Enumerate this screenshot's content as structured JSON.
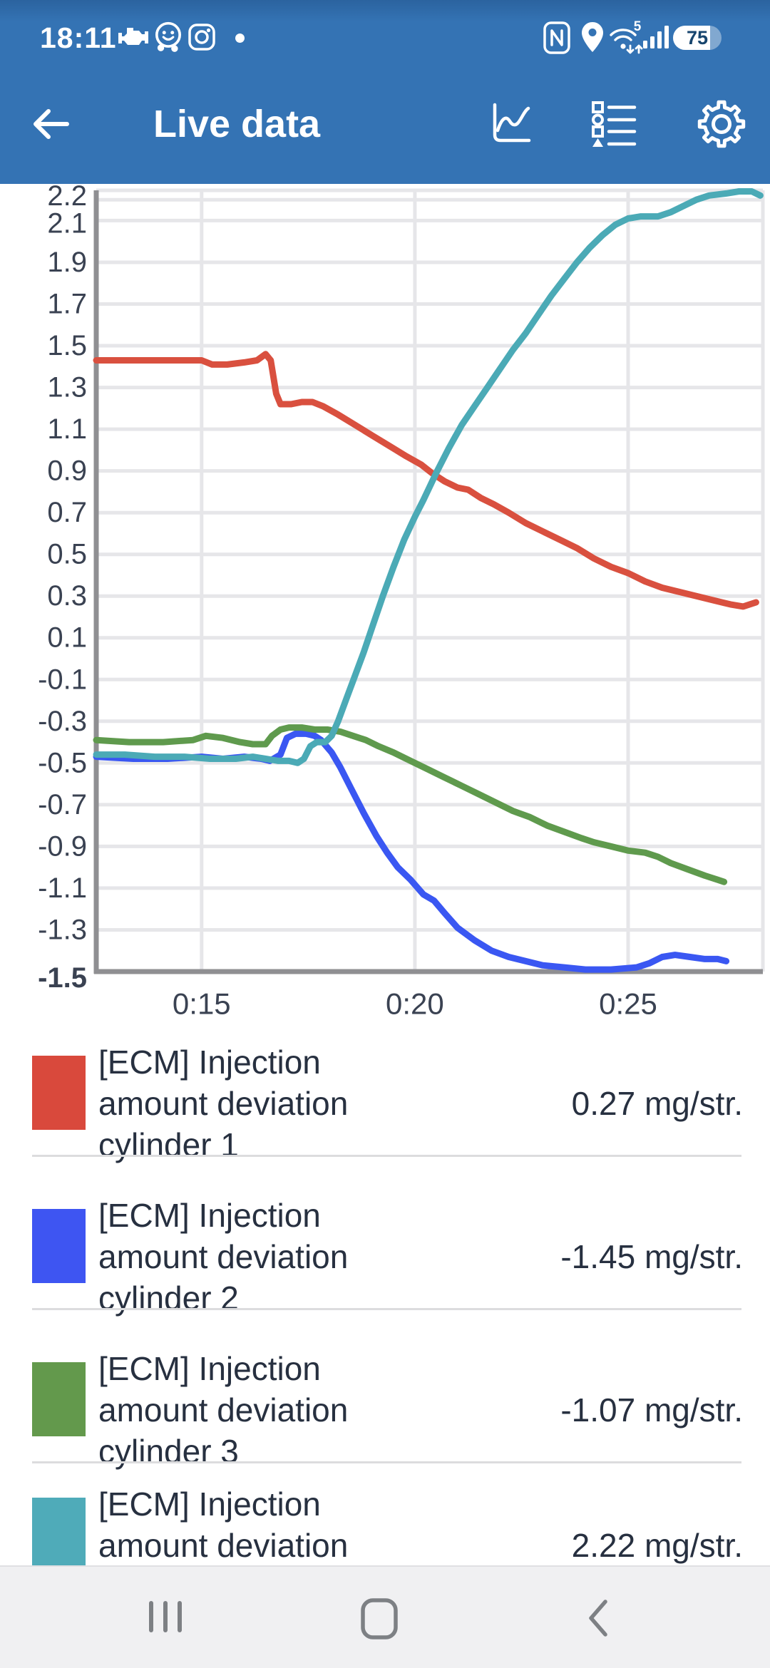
{
  "statusbar": {
    "time": "18:11",
    "battery": "75",
    "wifi_generation": "5",
    "icons": [
      "engine-icon",
      "waze-icon",
      "instagram-icon",
      "notification-dot",
      "nfc-icon",
      "location-icon",
      "wifi-icon",
      "signal-icon",
      "battery-indicator"
    ]
  },
  "appbar": {
    "title": "Live data",
    "actions": [
      "chart-view-icon",
      "list-view-icon",
      "settings-gear-icon"
    ]
  },
  "chart_data": {
    "type": "line",
    "title": "",
    "xlabel": "",
    "ylabel": "",
    "unit": "mg/str.",
    "grid": true,
    "legend_position": "below",
    "xlim": [
      12.53,
      28.16
    ],
    "ylim": [
      -1.5,
      2.245
    ],
    "xticks": [
      {
        "label": "0:15",
        "t": 15
      },
      {
        "label": "0:20",
        "t": 20
      },
      {
        "label": "0:25",
        "t": 25
      }
    ],
    "yticks": [
      {
        "label": "2.2",
        "v": 2.2
      },
      {
        "label": "2.1",
        "v": 2.1
      },
      {
        "label": "1.9",
        "v": 1.9
      },
      {
        "label": "1.7",
        "v": 1.7
      },
      {
        "label": "1.5",
        "v": 1.5
      },
      {
        "label": "1.3",
        "v": 1.3
      },
      {
        "label": "1.1",
        "v": 1.1
      },
      {
        "label": "0.9",
        "v": 0.9
      },
      {
        "label": "0.7",
        "v": 0.7
      },
      {
        "label": "0.5",
        "v": 0.5
      },
      {
        "label": "0.3",
        "v": 0.3
      },
      {
        "label": "0.1",
        "v": 0.1
      },
      {
        "label": "-0.1",
        "v": -0.1
      },
      {
        "label": "-0.3",
        "v": -0.3
      },
      {
        "label": "-0.5",
        "v": -0.5
      },
      {
        "label": "-0.7",
        "v": -0.7
      },
      {
        "label": "-0.9",
        "v": -0.9
      },
      {
        "label": "-1.1",
        "v": -1.1
      },
      {
        "label": "-1.3",
        "v": -1.3
      },
      {
        "label": "-1.5",
        "v": -1.5,
        "bold": true
      }
    ],
    "series": [
      {
        "name": "[ECM] Injection amount deviation cylinder 1",
        "color": "#d9503f",
        "current_value": 0.27,
        "points": [
          [
            12.53,
            1.43
          ],
          [
            13.4,
            1.43
          ],
          [
            14.2,
            1.43
          ],
          [
            15.0,
            1.43
          ],
          [
            15.25,
            1.41
          ],
          [
            15.6,
            1.41
          ],
          [
            16.0,
            1.42
          ],
          [
            16.3,
            1.43
          ],
          [
            16.5,
            1.46
          ],
          [
            16.62,
            1.43
          ],
          [
            16.75,
            1.27
          ],
          [
            16.85,
            1.22
          ],
          [
            17.1,
            1.22
          ],
          [
            17.35,
            1.23
          ],
          [
            17.6,
            1.23
          ],
          [
            17.85,
            1.21
          ],
          [
            18.2,
            1.17
          ],
          [
            18.6,
            1.12
          ],
          [
            19.0,
            1.07
          ],
          [
            19.4,
            1.02
          ],
          [
            19.8,
            0.97
          ],
          [
            20.15,
            0.93
          ],
          [
            20.4,
            0.89
          ],
          [
            20.7,
            0.85
          ],
          [
            21.0,
            0.82
          ],
          [
            21.25,
            0.81
          ],
          [
            21.55,
            0.77
          ],
          [
            21.85,
            0.74
          ],
          [
            22.2,
            0.7
          ],
          [
            22.6,
            0.65
          ],
          [
            23.0,
            0.61
          ],
          [
            23.4,
            0.57
          ],
          [
            23.8,
            0.53
          ],
          [
            24.2,
            0.48
          ],
          [
            24.6,
            0.44
          ],
          [
            25.0,
            0.41
          ],
          [
            25.4,
            0.37
          ],
          [
            25.8,
            0.34
          ],
          [
            26.2,
            0.32
          ],
          [
            26.6,
            0.3
          ],
          [
            27.0,
            0.28
          ],
          [
            27.4,
            0.26
          ],
          [
            27.7,
            0.25
          ],
          [
            28.0,
            0.27
          ]
        ]
      },
      {
        "name": "[ECM] Injection amount deviation cylinder 2",
        "color": "#3a57f2",
        "current_value": -1.45,
        "points": [
          [
            12.53,
            -0.47
          ],
          [
            13.4,
            -0.48
          ],
          [
            14.2,
            -0.48
          ],
          [
            15.0,
            -0.47
          ],
          [
            15.5,
            -0.48
          ],
          [
            16.0,
            -0.47
          ],
          [
            16.4,
            -0.48
          ],
          [
            16.6,
            -0.49
          ],
          [
            16.85,
            -0.46
          ],
          [
            17.0,
            -0.38
          ],
          [
            17.2,
            -0.36
          ],
          [
            17.45,
            -0.36
          ],
          [
            17.65,
            -0.37
          ],
          [
            17.8,
            -0.39
          ],
          [
            18.05,
            -0.45
          ],
          [
            18.25,
            -0.52
          ],
          [
            18.5,
            -0.62
          ],
          [
            18.8,
            -0.74
          ],
          [
            19.1,
            -0.85
          ],
          [
            19.35,
            -0.93
          ],
          [
            19.6,
            -1.0
          ],
          [
            19.9,
            -1.06
          ],
          [
            20.2,
            -1.13
          ],
          [
            20.45,
            -1.16
          ],
          [
            20.7,
            -1.22
          ],
          [
            21.0,
            -1.29
          ],
          [
            21.4,
            -1.35
          ],
          [
            21.8,
            -1.4
          ],
          [
            22.2,
            -1.43
          ],
          [
            22.6,
            -1.45
          ],
          [
            23.0,
            -1.47
          ],
          [
            23.5,
            -1.48
          ],
          [
            24.0,
            -1.49
          ],
          [
            24.6,
            -1.49
          ],
          [
            25.2,
            -1.48
          ],
          [
            25.5,
            -1.46
          ],
          [
            25.8,
            -1.43
          ],
          [
            26.1,
            -1.42
          ],
          [
            26.45,
            -1.43
          ],
          [
            26.8,
            -1.44
          ],
          [
            27.1,
            -1.44
          ],
          [
            27.3,
            -1.45
          ]
        ]
      },
      {
        "name": "[ECM] Injection amount deviation cylinder 3",
        "color": "#5f9a4d",
        "current_value": -1.07,
        "points": [
          [
            12.53,
            -0.39
          ],
          [
            13.3,
            -0.4
          ],
          [
            14.1,
            -0.4
          ],
          [
            14.8,
            -0.39
          ],
          [
            15.1,
            -0.37
          ],
          [
            15.5,
            -0.38
          ],
          [
            15.9,
            -0.4
          ],
          [
            16.2,
            -0.41
          ],
          [
            16.5,
            -0.41
          ],
          [
            16.65,
            -0.37
          ],
          [
            16.85,
            -0.34
          ],
          [
            17.05,
            -0.33
          ],
          [
            17.35,
            -0.33
          ],
          [
            17.65,
            -0.34
          ],
          [
            17.95,
            -0.34
          ],
          [
            18.25,
            -0.35
          ],
          [
            18.55,
            -0.37
          ],
          [
            18.85,
            -0.39
          ],
          [
            19.15,
            -0.42
          ],
          [
            19.5,
            -0.45
          ],
          [
            19.9,
            -0.49
          ],
          [
            20.3,
            -0.53
          ],
          [
            20.7,
            -0.57
          ],
          [
            21.1,
            -0.61
          ],
          [
            21.5,
            -0.65
          ],
          [
            21.9,
            -0.69
          ],
          [
            22.3,
            -0.73
          ],
          [
            22.7,
            -0.76
          ],
          [
            23.1,
            -0.8
          ],
          [
            23.5,
            -0.83
          ],
          [
            23.9,
            -0.86
          ],
          [
            24.2,
            -0.88
          ],
          [
            24.6,
            -0.9
          ],
          [
            25.0,
            -0.92
          ],
          [
            25.4,
            -0.93
          ],
          [
            25.7,
            -0.95
          ],
          [
            26.0,
            -0.98
          ],
          [
            26.4,
            -1.01
          ],
          [
            26.8,
            -1.04
          ],
          [
            27.1,
            -1.06
          ],
          [
            27.25,
            -1.07
          ]
        ]
      },
      {
        "name": "[ECM] Injection amount deviation",
        "color": "#4baab6",
        "current_value": 2.22,
        "points": [
          [
            12.53,
            -0.46
          ],
          [
            13.2,
            -0.46
          ],
          [
            13.9,
            -0.47
          ],
          [
            14.6,
            -0.47
          ],
          [
            15.2,
            -0.48
          ],
          [
            15.8,
            -0.48
          ],
          [
            16.2,
            -0.47
          ],
          [
            16.5,
            -0.48
          ],
          [
            16.8,
            -0.49
          ],
          [
            17.05,
            -0.49
          ],
          [
            17.25,
            -0.5
          ],
          [
            17.4,
            -0.48
          ],
          [
            17.55,
            -0.42
          ],
          [
            17.7,
            -0.4
          ],
          [
            17.9,
            -0.4
          ],
          [
            18.05,
            -0.37
          ],
          [
            18.2,
            -0.3
          ],
          [
            18.4,
            -0.19
          ],
          [
            18.6,
            -0.08
          ],
          [
            18.8,
            0.03
          ],
          [
            19.0,
            0.15
          ],
          [
            19.25,
            0.3
          ],
          [
            19.5,
            0.44
          ],
          [
            19.75,
            0.57
          ],
          [
            20.0,
            0.68
          ],
          [
            20.2,
            0.76
          ],
          [
            20.5,
            0.89
          ],
          [
            20.8,
            1.01
          ],
          [
            21.1,
            1.12
          ],
          [
            21.4,
            1.21
          ],
          [
            21.7,
            1.3
          ],
          [
            22.0,
            1.39
          ],
          [
            22.3,
            1.48
          ],
          [
            22.6,
            1.56
          ],
          [
            22.9,
            1.65
          ],
          [
            23.2,
            1.74
          ],
          [
            23.5,
            1.82
          ],
          [
            23.8,
            1.9
          ],
          [
            24.1,
            1.97
          ],
          [
            24.4,
            2.03
          ],
          [
            24.7,
            2.08
          ],
          [
            25.0,
            2.11
          ],
          [
            25.3,
            2.12
          ],
          [
            25.7,
            2.12
          ],
          [
            26.0,
            2.14
          ],
          [
            26.3,
            2.17
          ],
          [
            26.6,
            2.2
          ],
          [
            26.9,
            2.22
          ],
          [
            27.3,
            2.23
          ],
          [
            27.6,
            2.24
          ],
          [
            27.9,
            2.24
          ],
          [
            28.1,
            2.22
          ]
        ]
      }
    ]
  },
  "legend": {
    "rows": [
      {
        "swatch": "#d9493c",
        "lines": [
          "[ECM] Injection",
          "amount deviation",
          "cylinder 1"
        ],
        "value": "0.27 mg/str."
      },
      {
        "swatch": "#3e55f2",
        "lines": [
          "[ECM] Injection",
          "amount deviation",
          "cylinder 2"
        ],
        "value": "-1.45 mg/str."
      },
      {
        "swatch": "#63994c",
        "lines": [
          "[ECM] Injection",
          "amount deviation",
          "cylinder 3"
        ],
        "value": "-1.07 mg/str."
      },
      {
        "swatch": "#4fabb9",
        "lines": [
          "[ECM] Injection",
          "amount deviation"
        ],
        "value": "2.22 mg/str."
      }
    ]
  },
  "navbar": {
    "buttons": [
      "recents-button",
      "home-button",
      "back-button"
    ]
  },
  "colors": {
    "header_blue": "#3473b4",
    "chart_red": "#d9503f",
    "chart_blue": "#3a57f2",
    "chart_green": "#5f9a4d",
    "chart_teal": "#4baab6",
    "text_dark": "#273040",
    "grid_gray": "#e6e6e9",
    "axis_gray": "#8f8f92",
    "nav_icon_gray": "#7d8084"
  }
}
